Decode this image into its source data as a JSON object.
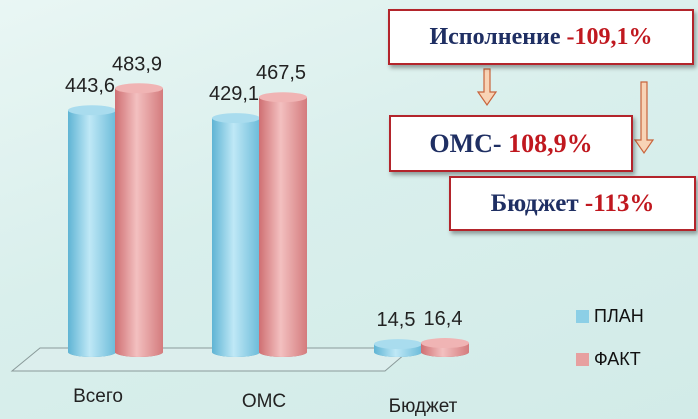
{
  "chart_data": {
    "type": "bar",
    "categories": [
      "Всего",
      "ОМС",
      "Бюджет"
    ],
    "series": [
      {
        "name": "ПЛАН",
        "values": [
          443.6,
          429.1,
          14.5
        ],
        "value_labels": [
          "443,6",
          "429,1",
          "14,5"
        ],
        "color": "#8ccfe6"
      },
      {
        "name": "ФАКТ",
        "values": [
          483.9,
          467.5,
          16.4
        ],
        "value_labels": [
          "483,9",
          "467,5",
          "16,4"
        ],
        "color": "#e7a0a0"
      }
    ],
    "ylim": [
      0,
      500
    ],
    "grid": false,
    "legend_position": "right",
    "style": "3d-cylinder"
  },
  "callouts": {
    "total": {
      "label": "Исполнение ",
      "value": "-109,1%"
    },
    "oms": {
      "label": "ОМС- ",
      "value": "108,9%"
    },
    "budget": {
      "label": "Бюджет ",
      "value": "-113%"
    }
  },
  "colors": {
    "callout_border": "#b3242b",
    "callout_value": "#c0181f",
    "callout_text": "#1f2f63",
    "arrow_fill": "#f8d3b5",
    "arrow_stroke": "#c8643c"
  }
}
